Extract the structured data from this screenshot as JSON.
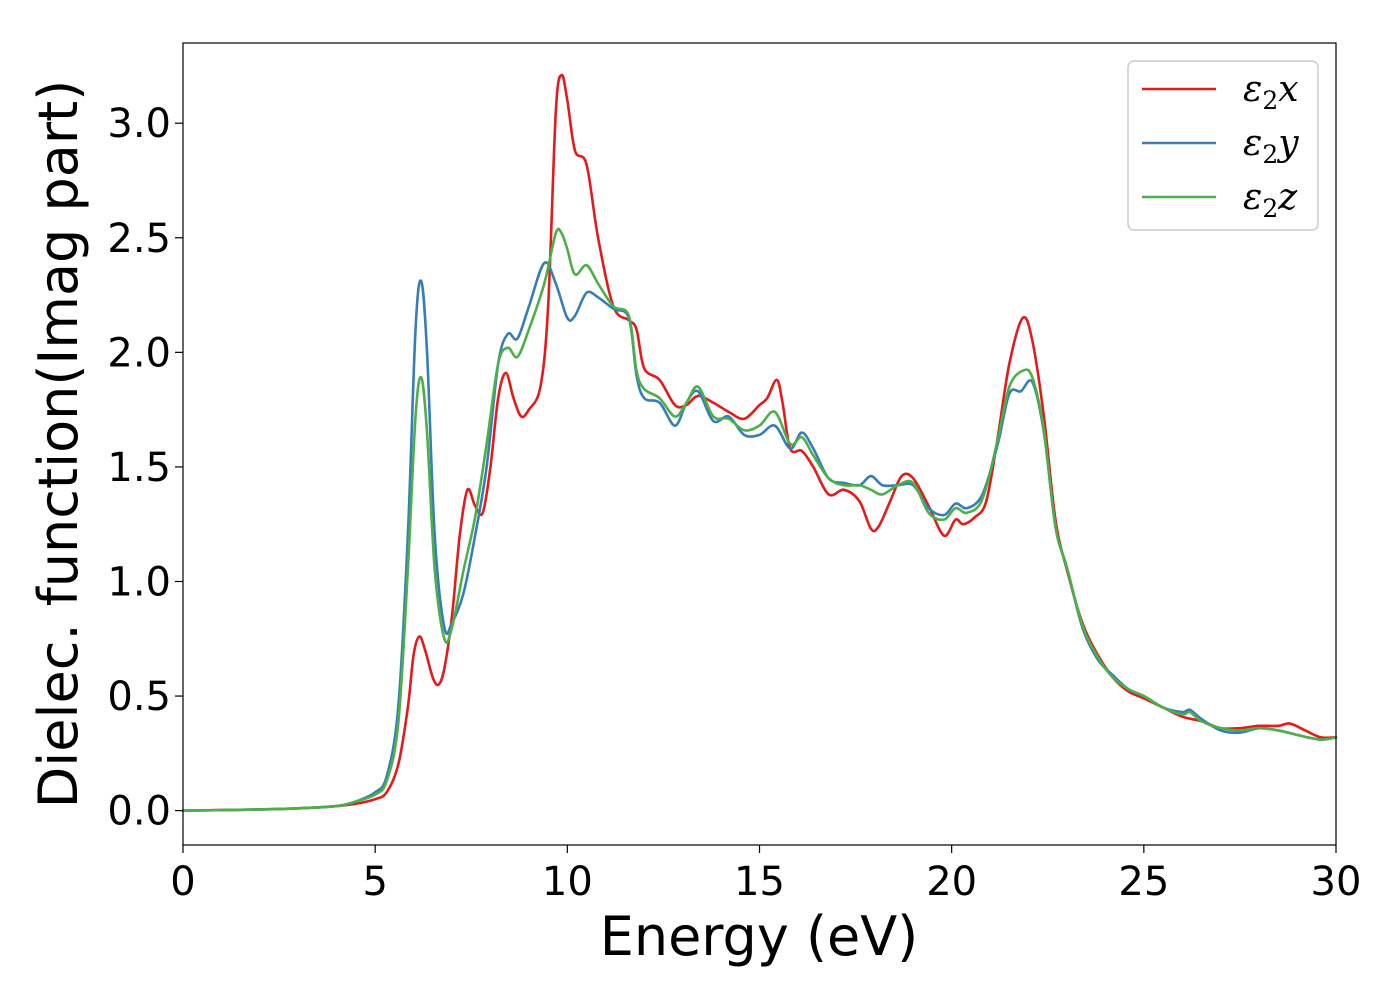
{
  "chart_data": {
    "type": "line",
    "xlabel": "Energy (eV)",
    "ylabel": "Dielec. function(Imag part)",
    "xlim": [
      0,
      30
    ],
    "ylim": [
      -0.15,
      3.35
    ],
    "xticks": [
      0,
      5,
      10,
      15,
      20,
      25,
      30
    ],
    "yticks": [
      0.0,
      0.5,
      1.0,
      1.5,
      2.0,
      2.5,
      3.0
    ],
    "xtick_labels": [
      "0",
      "5",
      "10",
      "15",
      "20",
      "25",
      "30"
    ],
    "ytick_labels": [
      "0.0",
      "0.5",
      "1.0",
      "1.5",
      "2.0",
      "2.5",
      "3.0"
    ],
    "grid": false,
    "legend_position": "top-right",
    "series": [
      {
        "name": "ε2x",
        "symbol": "ε",
        "subscript": "2",
        "suffix": "x",
        "color": "#e41a1c",
        "points": [
          [
            0,
            0
          ],
          [
            2,
            0.005
          ],
          [
            3,
            0.01
          ],
          [
            4,
            0.02
          ],
          [
            4.5,
            0.03
          ],
          [
            5,
            0.05
          ],
          [
            5.3,
            0.08
          ],
          [
            5.6,
            0.2
          ],
          [
            5.85,
            0.45
          ],
          [
            6.0,
            0.68
          ],
          [
            6.15,
            0.76
          ],
          [
            6.3,
            0.7
          ],
          [
            6.5,
            0.58
          ],
          [
            6.65,
            0.55
          ],
          [
            6.8,
            0.62
          ],
          [
            7.0,
            0.85
          ],
          [
            7.2,
            1.2
          ],
          [
            7.4,
            1.4
          ],
          [
            7.6,
            1.33
          ],
          [
            7.8,
            1.3
          ],
          [
            8.0,
            1.5
          ],
          [
            8.2,
            1.8
          ],
          [
            8.4,
            1.91
          ],
          [
            8.6,
            1.8
          ],
          [
            8.8,
            1.72
          ],
          [
            9.0,
            1.75
          ],
          [
            9.3,
            1.85
          ],
          [
            9.5,
            2.2
          ],
          [
            9.7,
            3.05
          ],
          [
            9.85,
            3.21
          ],
          [
            10.0,
            3.1
          ],
          [
            10.2,
            2.88
          ],
          [
            10.5,
            2.82
          ],
          [
            10.8,
            2.5
          ],
          [
            11.2,
            2.2
          ],
          [
            11.6,
            2.14
          ],
          [
            11.8,
            2.1
          ],
          [
            12.0,
            1.93
          ],
          [
            12.4,
            1.88
          ],
          [
            12.8,
            1.77
          ],
          [
            13.1,
            1.77
          ],
          [
            13.4,
            1.81
          ],
          [
            13.8,
            1.78
          ],
          [
            14.2,
            1.74
          ],
          [
            14.6,
            1.71
          ],
          [
            15.0,
            1.77
          ],
          [
            15.2,
            1.8
          ],
          [
            15.45,
            1.88
          ],
          [
            15.6,
            1.78
          ],
          [
            15.8,
            1.58
          ],
          [
            16.1,
            1.57
          ],
          [
            16.4,
            1.5
          ],
          [
            16.8,
            1.38
          ],
          [
            17.2,
            1.4
          ],
          [
            17.6,
            1.35
          ],
          [
            17.9,
            1.23
          ],
          [
            18.1,
            1.24
          ],
          [
            18.4,
            1.35
          ],
          [
            18.7,
            1.46
          ],
          [
            19.0,
            1.45
          ],
          [
            19.4,
            1.33
          ],
          [
            19.8,
            1.2
          ],
          [
            20.1,
            1.27
          ],
          [
            20.3,
            1.25
          ],
          [
            20.6,
            1.28
          ],
          [
            20.9,
            1.35
          ],
          [
            21.2,
            1.63
          ],
          [
            21.5,
            1.95
          ],
          [
            21.85,
            2.15
          ],
          [
            22.1,
            2.05
          ],
          [
            22.4,
            1.72
          ],
          [
            22.7,
            1.27
          ],
          [
            23.0,
            1.05
          ],
          [
            23.4,
            0.82
          ],
          [
            23.8,
            0.68
          ],
          [
            24.2,
            0.58
          ],
          [
            24.6,
            0.52
          ],
          [
            25.0,
            0.49
          ],
          [
            25.5,
            0.45
          ],
          [
            26.0,
            0.41
          ],
          [
            26.5,
            0.39
          ],
          [
            27.0,
            0.36
          ],
          [
            27.5,
            0.36
          ],
          [
            28.0,
            0.37
          ],
          [
            28.5,
            0.37
          ],
          [
            28.8,
            0.38
          ],
          [
            29.2,
            0.35
          ],
          [
            29.6,
            0.32
          ],
          [
            30,
            0.32
          ]
        ]
      },
      {
        "name": "ε2y",
        "symbol": "ε",
        "subscript": "2",
        "suffix": "y",
        "color": "#377eb8",
        "points": [
          [
            0,
            0
          ],
          [
            2,
            0.005
          ],
          [
            3,
            0.01
          ],
          [
            4,
            0.02
          ],
          [
            4.5,
            0.04
          ],
          [
            5,
            0.08
          ],
          [
            5.3,
            0.15
          ],
          [
            5.6,
            0.45
          ],
          [
            5.85,
            1.2
          ],
          [
            6.05,
            2.1
          ],
          [
            6.2,
            2.31
          ],
          [
            6.35,
            2.0
          ],
          [
            6.55,
            1.2
          ],
          [
            6.8,
            0.8
          ],
          [
            7.0,
            0.82
          ],
          [
            7.3,
            0.95
          ],
          [
            7.6,
            1.2
          ],
          [
            7.9,
            1.5
          ],
          [
            8.2,
            1.95
          ],
          [
            8.45,
            2.08
          ],
          [
            8.7,
            2.06
          ],
          [
            9.0,
            2.2
          ],
          [
            9.4,
            2.39
          ],
          [
            9.7,
            2.3
          ],
          [
            10.0,
            2.15
          ],
          [
            10.2,
            2.16
          ],
          [
            10.5,
            2.26
          ],
          [
            10.8,
            2.24
          ],
          [
            11.2,
            2.19
          ],
          [
            11.6,
            2.15
          ],
          [
            11.8,
            1.9
          ],
          [
            12.0,
            1.8
          ],
          [
            12.4,
            1.78
          ],
          [
            12.8,
            1.68
          ],
          [
            13.1,
            1.78
          ],
          [
            13.4,
            1.83
          ],
          [
            13.8,
            1.7
          ],
          [
            14.2,
            1.72
          ],
          [
            14.6,
            1.64
          ],
          [
            15.0,
            1.64
          ],
          [
            15.4,
            1.68
          ],
          [
            15.8,
            1.58
          ],
          [
            16.1,
            1.65
          ],
          [
            16.4,
            1.58
          ],
          [
            16.8,
            1.45
          ],
          [
            17.2,
            1.43
          ],
          [
            17.6,
            1.42
          ],
          [
            17.9,
            1.46
          ],
          [
            18.2,
            1.42
          ],
          [
            18.6,
            1.42
          ],
          [
            19.0,
            1.42
          ],
          [
            19.4,
            1.32
          ],
          [
            19.8,
            1.29
          ],
          [
            20.1,
            1.34
          ],
          [
            20.4,
            1.32
          ],
          [
            20.8,
            1.38
          ],
          [
            21.2,
            1.6
          ],
          [
            21.5,
            1.82
          ],
          [
            21.8,
            1.83
          ],
          [
            22.1,
            1.87
          ],
          [
            22.4,
            1.65
          ],
          [
            22.7,
            1.24
          ],
          [
            23.0,
            1.06
          ],
          [
            23.4,
            0.8
          ],
          [
            23.8,
            0.66
          ],
          [
            24.2,
            0.59
          ],
          [
            24.6,
            0.53
          ],
          [
            25.0,
            0.5
          ],
          [
            25.5,
            0.45
          ],
          [
            26.0,
            0.43
          ],
          [
            26.2,
            0.44
          ],
          [
            26.5,
            0.4
          ],
          [
            27.0,
            0.35
          ],
          [
            27.5,
            0.34
          ],
          [
            28.0,
            0.36
          ],
          [
            28.5,
            0.35
          ],
          [
            29.0,
            0.33
          ],
          [
            29.6,
            0.31
          ],
          [
            30,
            0.32
          ]
        ]
      },
      {
        "name": "ε2z",
        "symbol": "ε",
        "subscript": "2",
        "suffix": "z",
        "color": "#4daf4a",
        "points": [
          [
            0,
            0
          ],
          [
            2,
            0.005
          ],
          [
            3,
            0.01
          ],
          [
            4,
            0.02
          ],
          [
            4.5,
            0.04
          ],
          [
            5,
            0.07
          ],
          [
            5.3,
            0.13
          ],
          [
            5.6,
            0.38
          ],
          [
            5.85,
            1.05
          ],
          [
            6.05,
            1.72
          ],
          [
            6.2,
            1.89
          ],
          [
            6.35,
            1.65
          ],
          [
            6.55,
            1.05
          ],
          [
            6.8,
            0.75
          ],
          [
            7.0,
            0.8
          ],
          [
            7.3,
            1.05
          ],
          [
            7.6,
            1.28
          ],
          [
            7.9,
            1.6
          ],
          [
            8.2,
            1.95
          ],
          [
            8.45,
            2.02
          ],
          [
            8.7,
            1.98
          ],
          [
            9.0,
            2.1
          ],
          [
            9.4,
            2.3
          ],
          [
            9.7,
            2.52
          ],
          [
            9.85,
            2.52
          ],
          [
            10.0,
            2.45
          ],
          [
            10.2,
            2.34
          ],
          [
            10.5,
            2.38
          ],
          [
            10.8,
            2.3
          ],
          [
            11.2,
            2.2
          ],
          [
            11.6,
            2.16
          ],
          [
            11.8,
            1.92
          ],
          [
            12.0,
            1.84
          ],
          [
            12.4,
            1.8
          ],
          [
            12.8,
            1.72
          ],
          [
            13.1,
            1.78
          ],
          [
            13.4,
            1.85
          ],
          [
            13.8,
            1.72
          ],
          [
            14.2,
            1.71
          ],
          [
            14.6,
            1.66
          ],
          [
            15.0,
            1.68
          ],
          [
            15.4,
            1.74
          ],
          [
            15.8,
            1.6
          ],
          [
            16.1,
            1.63
          ],
          [
            16.4,
            1.55
          ],
          [
            16.8,
            1.45
          ],
          [
            17.2,
            1.42
          ],
          [
            17.6,
            1.42
          ],
          [
            17.9,
            1.4
          ],
          [
            18.2,
            1.38
          ],
          [
            18.6,
            1.42
          ],
          [
            19.0,
            1.43
          ],
          [
            19.4,
            1.3
          ],
          [
            19.8,
            1.27
          ],
          [
            20.1,
            1.32
          ],
          [
            20.4,
            1.3
          ],
          [
            20.8,
            1.36
          ],
          [
            21.2,
            1.62
          ],
          [
            21.5,
            1.85
          ],
          [
            21.85,
            1.92
          ],
          [
            22.1,
            1.89
          ],
          [
            22.4,
            1.66
          ],
          [
            22.7,
            1.24
          ],
          [
            23.0,
            1.06
          ],
          [
            23.4,
            0.81
          ],
          [
            23.8,
            0.67
          ],
          [
            24.2,
            0.58
          ],
          [
            24.6,
            0.53
          ],
          [
            25.0,
            0.5
          ],
          [
            25.5,
            0.45
          ],
          [
            26.0,
            0.42
          ],
          [
            26.2,
            0.43
          ],
          [
            26.5,
            0.39
          ],
          [
            27.0,
            0.36
          ],
          [
            27.5,
            0.35
          ],
          [
            28.0,
            0.36
          ],
          [
            28.5,
            0.35
          ],
          [
            29.0,
            0.33
          ],
          [
            29.6,
            0.31
          ],
          [
            30,
            0.32
          ]
        ]
      }
    ]
  }
}
